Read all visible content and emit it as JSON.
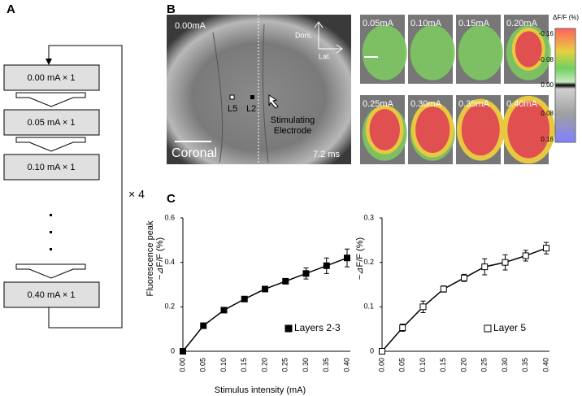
{
  "panels": {
    "a": "A",
    "b": "B",
    "c": "C"
  },
  "flowchart": {
    "steps": [
      "0.00 mA × 1",
      "0.05 mA × 1",
      "0.10 mA × 1",
      "0.40 mA × 1"
    ],
    "repeat": "× 4"
  },
  "images": {
    "main": {
      "time_label": "0.00mA",
      "dors": "Dors.",
      "lat": "Lat.",
      "l5": "L5",
      "l2": "L2",
      "electrode": [
        "Stimulating",
        "Electrode"
      ],
      "section": "Coronal",
      "time": "7.2 ms"
    },
    "frames": [
      "0.05mA",
      "0.10mA",
      "0.15mA",
      "0.20mA",
      "0.25mA",
      "0.30mA",
      "0.35mA",
      "0.40mA"
    ],
    "colorbar": {
      "title": "ΔF/F (%)",
      "labels": [
        "-0.16",
        "-0.08",
        "0.00",
        "0.08",
        "0.16"
      ]
    }
  },
  "chart_data": [
    {
      "type": "line",
      "ylabel": [
        "Fluorescence  peak",
        "−⊿F/F (%)"
      ],
      "xlabel": "Stimulus  intensity (mA)",
      "categories": [
        "0.00",
        "0.05",
        "0.10",
        "0.15",
        "0.20",
        "0.25",
        "0.30",
        "0.35",
        "0.40"
      ],
      "series": [
        {
          "name": "Layers 2-3",
          "color": "#000000",
          "marker_fill": "#000000",
          "values": [
            0,
            0.115,
            0.185,
            0.235,
            0.28,
            0.315,
            0.35,
            0.385,
            0.42
          ],
          "errors": [
            0.005,
            0.01,
            0.01,
            0.01,
            0.01,
            0.01,
            0.025,
            0.035,
            0.04
          ]
        }
      ],
      "ylim": [
        0,
        0.6
      ],
      "yticks": [
        0,
        0.2,
        0.4,
        0.6
      ],
      "legend": "lower right"
    },
    {
      "type": "line",
      "ylabel": [
        "−⊿F/F (%)"
      ],
      "categories": [
        "0.00",
        "0.05",
        "0.10",
        "0.15",
        "0.20",
        "0.25",
        "0.30",
        "0.35",
        "0.40"
      ],
      "series": [
        {
          "name": "Layer 5",
          "color": "#000000",
          "marker_fill": "#ffffff",
          "values": [
            0,
            0.053,
            0.1,
            0.14,
            0.165,
            0.19,
            0.2,
            0.215,
            0.232
          ],
          "errors": [
            0.004,
            0.008,
            0.013,
            0.007,
            0.008,
            0.018,
            0.017,
            0.012,
            0.013
          ]
        }
      ],
      "ylim": [
        0,
        0.3
      ],
      "yticks": [
        0,
        0.1,
        0.2,
        0.3
      ],
      "legend": "lower right"
    }
  ]
}
